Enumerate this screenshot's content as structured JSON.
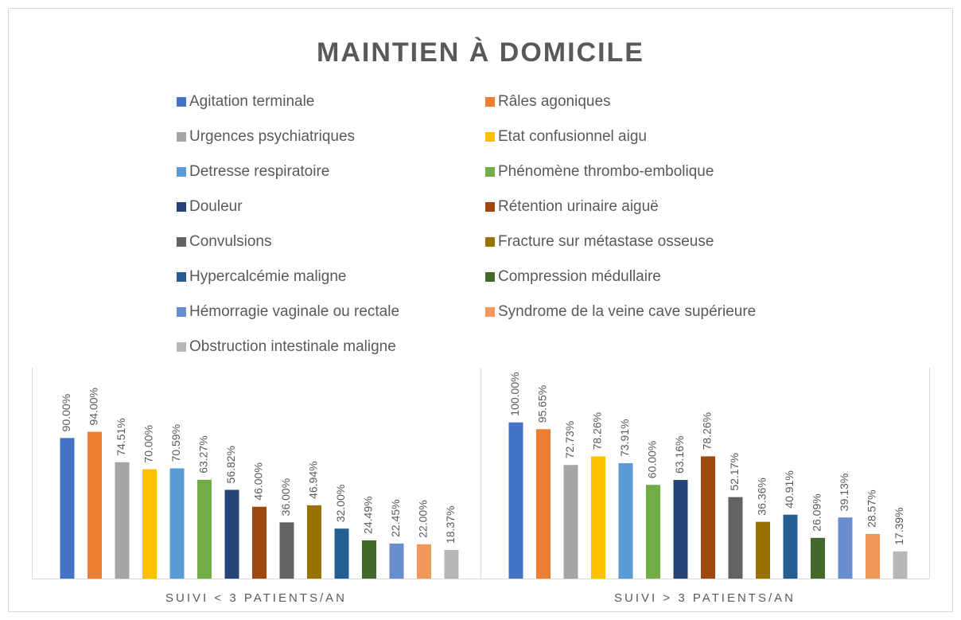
{
  "chart_data": {
    "type": "bar",
    "title": "MAINTIEN À DOMICILE",
    "categories": [
      "SUIVI < 3 PATIENTS/AN",
      "SUIVI > 3 PATIENTS/AN"
    ],
    "ylim": [
      0,
      135
    ],
    "legend": "top",
    "series": [
      {
        "name": "Agitation terminale",
        "color": "#4472c4",
        "values": [
          90,
          100
        ],
        "value_labels": [
          "90.00%",
          "100.00%"
        ]
      },
      {
        "name": "Râles agoniques",
        "color": "#ed7d31",
        "values": [
          94,
          95.65
        ],
        "value_labels": [
          "94.00%",
          "95.65%"
        ]
      },
      {
        "name": "Urgences psychiatriques",
        "color": "#a5a5a5",
        "values": [
          74.51,
          72.73
        ],
        "value_labels": [
          "74.51%",
          "72.73%"
        ]
      },
      {
        "name": "Etat confusionnel aigu",
        "color": "#ffc000",
        "values": [
          70,
          78.26
        ],
        "value_labels": [
          "70.00%",
          "78.26%"
        ]
      },
      {
        "name": "Detresse respiratoire",
        "color": "#5b9bd5",
        "values": [
          70.59,
          73.91
        ],
        "value_labels": [
          "70.59%",
          "73.91%"
        ]
      },
      {
        "name": "Phénomène thrombo-embolique",
        "color": "#70ad47",
        "values": [
          63.27,
          60
        ],
        "value_labels": [
          "63.27%",
          "60.00%"
        ]
      },
      {
        "name": "Douleur",
        "color": "#264478",
        "values": [
          56.82,
          63.16
        ],
        "value_labels": [
          "56.82%",
          "63.16%"
        ]
      },
      {
        "name": "Rétention urinaire aiguë",
        "color": "#9e480e",
        "values": [
          46,
          78.26
        ],
        "value_labels": [
          "46.00%",
          "78.26%"
        ]
      },
      {
        "name": "Convulsions",
        "color": "#636363",
        "values": [
          36,
          52.17
        ],
        "value_labels": [
          "36.00%",
          "52.17%"
        ]
      },
      {
        "name": "Fracture sur métastase osseuse",
        "color": "#997300",
        "values": [
          46.94,
          36.36
        ],
        "value_labels": [
          "46.94%",
          "36.36%"
        ]
      },
      {
        "name": "Hypercalcémie maligne",
        "color": "#255e91",
        "values": [
          32,
          40.91
        ],
        "value_labels": [
          "32.00%",
          "40.91%"
        ]
      },
      {
        "name": "Compression médullaire",
        "color": "#43682b",
        "values": [
          24.49,
          26.09
        ],
        "value_labels": [
          "24.49%",
          "26.09%"
        ]
      },
      {
        "name": "Hémorragie vaginale ou rectale",
        "color": "#698ed0",
        "values": [
          22.45,
          39.13
        ],
        "value_labels": [
          "22.45%",
          "39.13%"
        ]
      },
      {
        "name": "Syndrome de la veine cave supérieure",
        "color": "#f1975a",
        "values": [
          22,
          28.57
        ],
        "value_labels": [
          "22.00%",
          "28.57%"
        ]
      },
      {
        "name": "Obstruction intestinale maligne",
        "color": "#b7b7b7",
        "values": [
          18.37,
          17.39
        ],
        "value_labels": [
          "18.37%",
          "17.39%"
        ]
      }
    ]
  }
}
